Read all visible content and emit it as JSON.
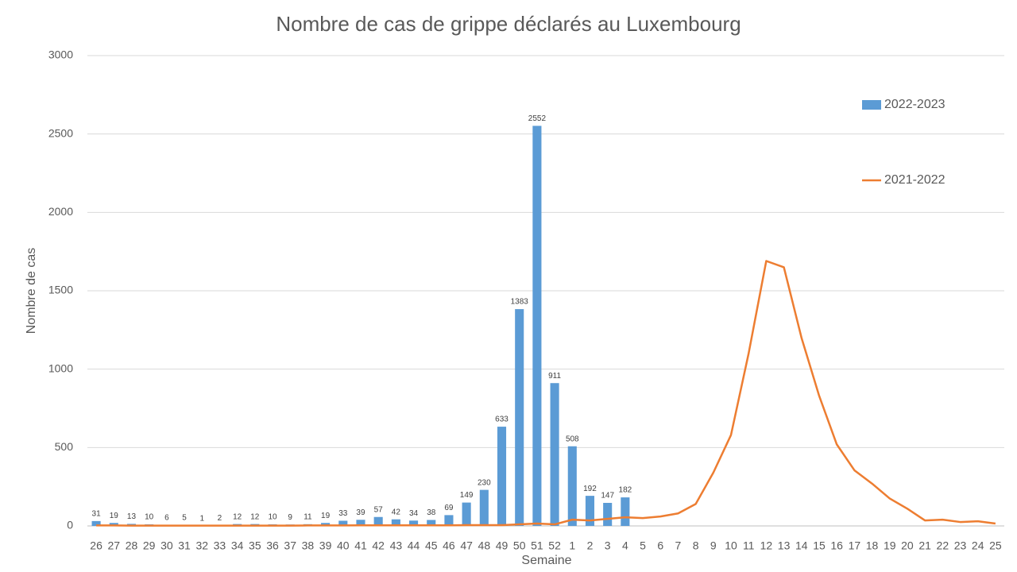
{
  "chart_data": {
    "type": "bar_line",
    "title": "Nombre de cas de grippe déclarés au Luxembourg",
    "x_label": "Semaine",
    "y_label": "Nombre de cas",
    "categories": [
      "26",
      "27",
      "28",
      "29",
      "30",
      "31",
      "32",
      "33",
      "34",
      "35",
      "36",
      "37",
      "38",
      "39",
      "40",
      "41",
      "42",
      "43",
      "44",
      "45",
      "46",
      "47",
      "48",
      "49",
      "50",
      "51",
      "52",
      "1",
      "2",
      "3",
      "4",
      "5",
      "6",
      "7",
      "8",
      "9",
      "10",
      "11",
      "12",
      "13",
      "14",
      "15",
      "16",
      "17",
      "18",
      "19",
      "20",
      "21",
      "22",
      "23",
      "24",
      "25"
    ],
    "series": [
      {
        "name": "2022-2023",
        "type": "bar",
        "color": "#5b9bd5",
        "values": [
          31,
          19,
          13,
          10,
          6,
          5,
          1,
          2,
          12,
          12,
          10,
          9,
          11,
          19,
          33,
          39,
          57,
          42,
          34,
          38,
          69,
          149,
          230,
          633,
          1383,
          2552,
          911,
          508,
          192,
          147,
          182,
          null,
          null,
          null,
          null,
          null,
          null,
          null,
          null,
          null,
          null,
          null,
          null,
          null,
          null,
          null,
          null,
          null,
          null,
          null,
          null,
          null
        ]
      },
      {
        "name": "2021-2022",
        "type": "line",
        "color": "#ed7d31",
        "values": [
          3,
          3,
          2,
          2,
          2,
          2,
          2,
          2,
          2,
          2,
          2,
          2,
          3,
          3,
          3,
          4,
          4,
          4,
          4,
          4,
          4,
          5,
          5,
          5,
          10,
          15,
          10,
          40,
          35,
          45,
          55,
          50,
          60,
          80,
          140,
          340,
          580,
          1100,
          1690,
          1650,
          1200,
          830,
          520,
          355,
          270,
          175,
          110,
          35,
          40,
          25,
          30,
          15
        ]
      }
    ],
    "ylim": [
      0,
      3000
    ],
    "yticks": [
      0,
      500,
      1000,
      1500,
      2000,
      2500,
      3000
    ],
    "grid": true,
    "legend": "right"
  }
}
